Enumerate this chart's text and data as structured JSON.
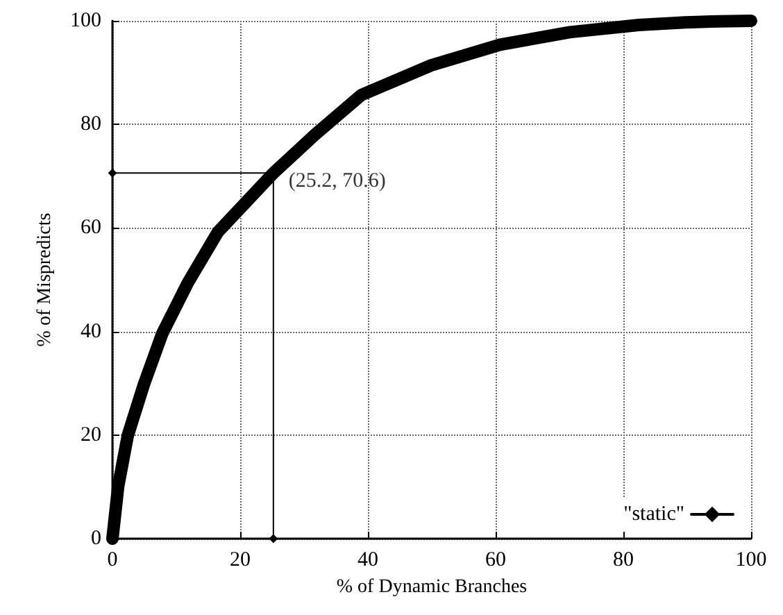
{
  "chart_data": {
    "type": "line",
    "xlabel": "% of Dynamic Branches",
    "ylabel": "% of Mispredicts",
    "xlim": [
      0,
      100
    ],
    "xticks": [
      0,
      20,
      40,
      60,
      80,
      100
    ],
    "ylim": [
      0,
      100
    ],
    "yticks": [
      0,
      20,
      40,
      60,
      80,
      100
    ],
    "grid": true,
    "legend": "bottom right",
    "marker": "diamond",
    "line_style": "solid",
    "annotations": [
      {
        "text": "(25.2, 70.6)",
        "x": 25.2,
        "y": 70.6
      }
    ],
    "series": [
      {
        "name": "\"static\"",
        "color": "#000000",
        "x": [
          0,
          0.9,
          2.4,
          4.9,
          7.8,
          11.8,
          16.5,
          25.2,
          31.7,
          39,
          49.9,
          60.7,
          71.6,
          82.4,
          89.7,
          95,
          100
        ],
        "values": [
          0,
          10.1,
          19.9,
          29.7,
          39.6,
          49.4,
          59.2,
          70.6,
          78,
          85.7,
          91.4,
          95.4,
          97.8,
          99.2,
          99.7,
          99.9,
          100
        ]
      },
      {
        "color": "#000000",
        "x": [
          0,
          25.2,
          25.2
        ],
        "values": [
          70.6,
          70.6,
          0
        ]
      }
    ]
  }
}
